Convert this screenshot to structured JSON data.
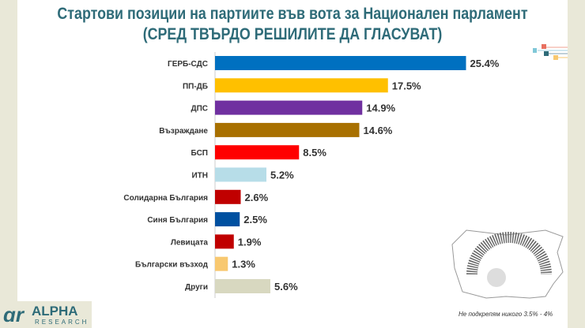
{
  "title_line1": "Стартови позиции на партиите във вота за Национален парламент",
  "title_line2": "(СРЕД ТВЪРДО РЕШИЛИТЕ ДА ГЛАСУВАТ)",
  "note": "Не подкрепям никого 3.5% - 4%",
  "logo": {
    "name": "ALPHA",
    "sub": "RESEARCH"
  },
  "chart_data": {
    "type": "bar",
    "orientation": "horizontal",
    "categories": [
      "ГЕРБ-СДС",
      "ПП-ДБ",
      "ДПС",
      "Възраждане",
      "БСП",
      "ИТН",
      "Солидарна България",
      "Синя България",
      "Левицата",
      "Български възход",
      "Други"
    ],
    "values": [
      25.4,
      17.5,
      14.9,
      14.6,
      8.5,
      5.2,
      2.6,
      2.5,
      1.9,
      1.3,
      5.6
    ],
    "labels": [
      "25.4%",
      "17.5%",
      "14.9%",
      "14.6%",
      "8.5%",
      "5.2%",
      "2.6%",
      "2.5%",
      "1.9%",
      "1.3%",
      "5.6%"
    ],
    "colors": [
      "#0070c0",
      "#ffc000",
      "#7030a0",
      "#a87000",
      "#ff0000",
      "#b7dde8",
      "#c00000",
      "#0050a0",
      "#c00000",
      "#f8c870",
      "#d8d8c0"
    ],
    "unit": "%",
    "grid": false
  }
}
